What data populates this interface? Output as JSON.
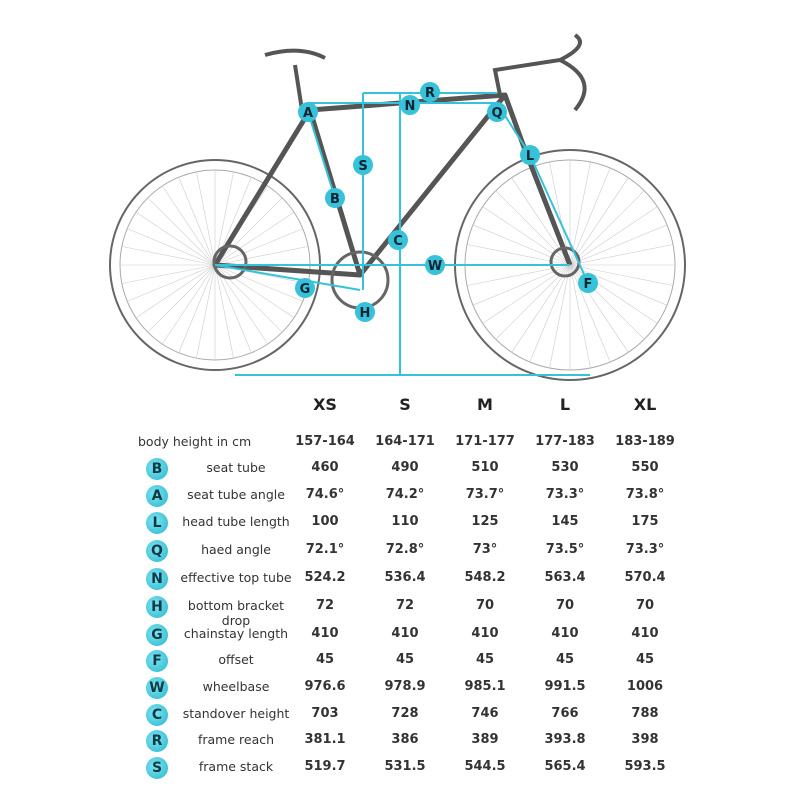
{
  "colors": {
    "accent": "#36c3d9",
    "frame": "#555555"
  },
  "diagram_labels": [
    "A",
    "N",
    "R",
    "Q",
    "L",
    "S",
    "B",
    "C",
    "W",
    "F",
    "G",
    "H"
  ],
  "table": {
    "sizes": [
      "XS",
      "S",
      "M",
      "L",
      "XL"
    ],
    "body_height": {
      "label": "body height in cm",
      "values": [
        "157-164",
        "164-171",
        "171-177",
        "177-183",
        "183-189"
      ]
    },
    "rows": [
      {
        "key": "B",
        "label": "seat tube",
        "values": [
          "460",
          "490",
          "510",
          "530",
          "550"
        ]
      },
      {
        "key": "A",
        "label": "seat tube angle",
        "values": [
          "74.6°",
          "74.2°",
          "73.7°",
          "73.3°",
          "73.8°"
        ]
      },
      {
        "key": "L",
        "label": "head tube length",
        "values": [
          "100",
          "110",
          "125",
          "145",
          "175"
        ]
      },
      {
        "key": "Q",
        "label": "haed angle",
        "values": [
          "72.1°",
          "72.8°",
          "73°",
          "73.5°",
          "73.3°"
        ]
      },
      {
        "key": "N",
        "label": "effective top tube",
        "values": [
          "524.2",
          "536.4",
          "548.2",
          "563.4",
          "570.4"
        ]
      },
      {
        "key": "H",
        "label": "bottom bracket drop",
        "values": [
          "72",
          "72",
          "70",
          "70",
          "70"
        ]
      },
      {
        "key": "G",
        "label": "chainstay length",
        "values": [
          "410",
          "410",
          "410",
          "410",
          "410"
        ]
      },
      {
        "key": "F",
        "label": "offset",
        "values": [
          "45",
          "45",
          "45",
          "45",
          "45"
        ]
      },
      {
        "key": "W",
        "label": "wheelbase",
        "values": [
          "976.6",
          "978.9",
          "985.1",
          "991.5",
          "1006"
        ]
      },
      {
        "key": "C",
        "label": "standover height",
        "values": [
          "703",
          "728",
          "746",
          "766",
          "788"
        ]
      },
      {
        "key": "R",
        "label": "frame reach",
        "values": [
          "381.1",
          "386",
          "389",
          "393.8",
          "398"
        ]
      },
      {
        "key": "S",
        "label": "frame stack",
        "values": [
          "519.7",
          "531.5",
          "544.5",
          "565.4",
          "593.5"
        ]
      }
    ]
  }
}
